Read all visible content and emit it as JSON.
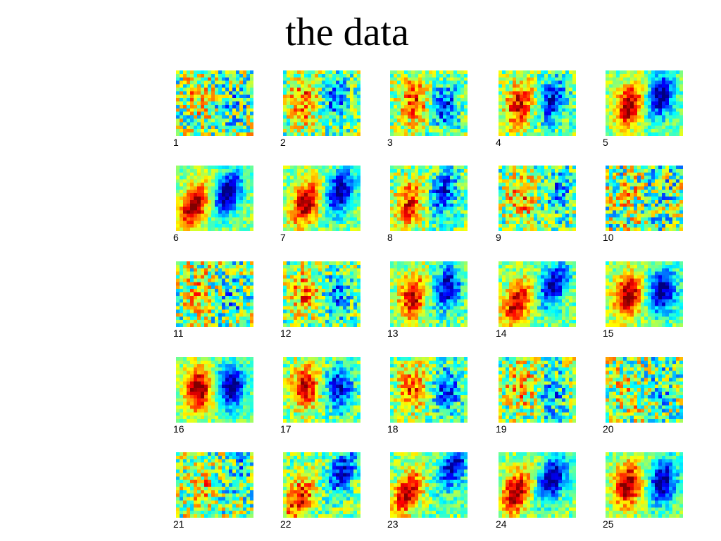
{
  "title": "the data",
  "colormap": "jet",
  "panels": [
    {
      "label": "1",
      "signal": 0.25,
      "red_cx": 0.3,
      "red_cy": 0.4,
      "blue_cx": 0.72,
      "blue_cy": 0.5,
      "tilt": 0.0
    },
    {
      "label": "2",
      "signal": 0.55,
      "red_cx": 0.26,
      "red_cy": 0.48,
      "blue_cx": 0.7,
      "blue_cy": 0.42,
      "tilt": 0.0
    },
    {
      "label": "3",
      "signal": 0.65,
      "red_cx": 0.3,
      "red_cy": 0.45,
      "blue_cx": 0.72,
      "blue_cy": 0.55,
      "tilt": 0.0
    },
    {
      "label": "4",
      "signal": 0.75,
      "red_cx": 0.26,
      "red_cy": 0.52,
      "blue_cx": 0.7,
      "blue_cy": 0.45,
      "tilt": 0.3
    },
    {
      "label": "5",
      "signal": 0.95,
      "red_cx": 0.3,
      "red_cy": 0.55,
      "blue_cx": 0.72,
      "blue_cy": 0.38,
      "tilt": 0.4
    },
    {
      "label": "6",
      "signal": 1.0,
      "red_cx": 0.22,
      "red_cy": 0.62,
      "blue_cx": 0.68,
      "blue_cy": 0.42,
      "tilt": 0.6
    },
    {
      "label": "7",
      "signal": 0.95,
      "red_cx": 0.28,
      "red_cy": 0.58,
      "blue_cx": 0.74,
      "blue_cy": 0.4,
      "tilt": 0.5
    },
    {
      "label": "8",
      "signal": 0.7,
      "red_cx": 0.24,
      "red_cy": 0.6,
      "blue_cx": 0.7,
      "blue_cy": 0.4,
      "tilt": 0.3
    },
    {
      "label": "9",
      "signal": 0.45,
      "red_cx": 0.3,
      "red_cy": 0.5,
      "blue_cx": 0.78,
      "blue_cy": 0.42,
      "tilt": 0.0
    },
    {
      "label": "10",
      "signal": 0.15,
      "red_cx": 0.28,
      "red_cy": 0.5,
      "blue_cx": 0.68,
      "blue_cy": 0.4,
      "tilt": 0.0
    },
    {
      "label": "11",
      "signal": 0.25,
      "red_cx": 0.3,
      "red_cy": 0.45,
      "blue_cx": 0.74,
      "blue_cy": 0.6,
      "tilt": 0.0
    },
    {
      "label": "12",
      "signal": 0.5,
      "red_cx": 0.28,
      "red_cy": 0.45,
      "blue_cx": 0.72,
      "blue_cy": 0.52,
      "tilt": 0.0
    },
    {
      "label": "13",
      "signal": 0.85,
      "red_cx": 0.28,
      "red_cy": 0.55,
      "blue_cx": 0.75,
      "blue_cy": 0.4,
      "tilt": 0.3
    },
    {
      "label": "14",
      "signal": 0.9,
      "red_cx": 0.24,
      "red_cy": 0.65,
      "blue_cx": 0.72,
      "blue_cy": 0.35,
      "tilt": 0.6
    },
    {
      "label": "15",
      "signal": 0.95,
      "red_cx": 0.28,
      "red_cy": 0.52,
      "blue_cx": 0.75,
      "blue_cy": 0.45,
      "tilt": 0.2
    },
    {
      "label": "16",
      "signal": 1.0,
      "red_cx": 0.28,
      "red_cy": 0.5,
      "blue_cx": 0.72,
      "blue_cy": 0.45,
      "tilt": 0.0
    },
    {
      "label": "17",
      "signal": 0.8,
      "red_cx": 0.28,
      "red_cy": 0.45,
      "blue_cx": 0.74,
      "blue_cy": 0.48,
      "tilt": 0.0
    },
    {
      "label": "18",
      "signal": 0.65,
      "red_cx": 0.28,
      "red_cy": 0.45,
      "blue_cx": 0.74,
      "blue_cy": 0.5,
      "tilt": 0.0
    },
    {
      "label": "19",
      "signal": 0.4,
      "red_cx": 0.28,
      "red_cy": 0.45,
      "blue_cx": 0.72,
      "blue_cy": 0.55,
      "tilt": 0.0
    },
    {
      "label": "20",
      "signal": 0.25,
      "red_cx": 0.25,
      "red_cy": 0.55,
      "blue_cx": 0.75,
      "blue_cy": 0.45,
      "tilt": 0.0
    },
    {
      "label": "21",
      "signal": 0.3,
      "red_cx": 0.32,
      "red_cy": 0.6,
      "blue_cx": 0.85,
      "blue_cy": 0.25,
      "tilt": 0.5
    },
    {
      "label": "22",
      "signal": 0.75,
      "red_cx": 0.2,
      "red_cy": 0.72,
      "blue_cx": 0.78,
      "blue_cy": 0.28,
      "tilt": 0.8
    },
    {
      "label": "23",
      "signal": 0.85,
      "red_cx": 0.22,
      "red_cy": 0.62,
      "blue_cx": 0.82,
      "blue_cy": 0.22,
      "tilt": 0.8
    },
    {
      "label": "24",
      "signal": 0.95,
      "red_cx": 0.22,
      "red_cy": 0.62,
      "blue_cx": 0.7,
      "blue_cy": 0.4,
      "tilt": 0.6
    },
    {
      "label": "25",
      "signal": 0.95,
      "red_cx": 0.28,
      "red_cy": 0.5,
      "blue_cx": 0.75,
      "blue_cy": 0.45,
      "tilt": 0.2
    }
  ]
}
